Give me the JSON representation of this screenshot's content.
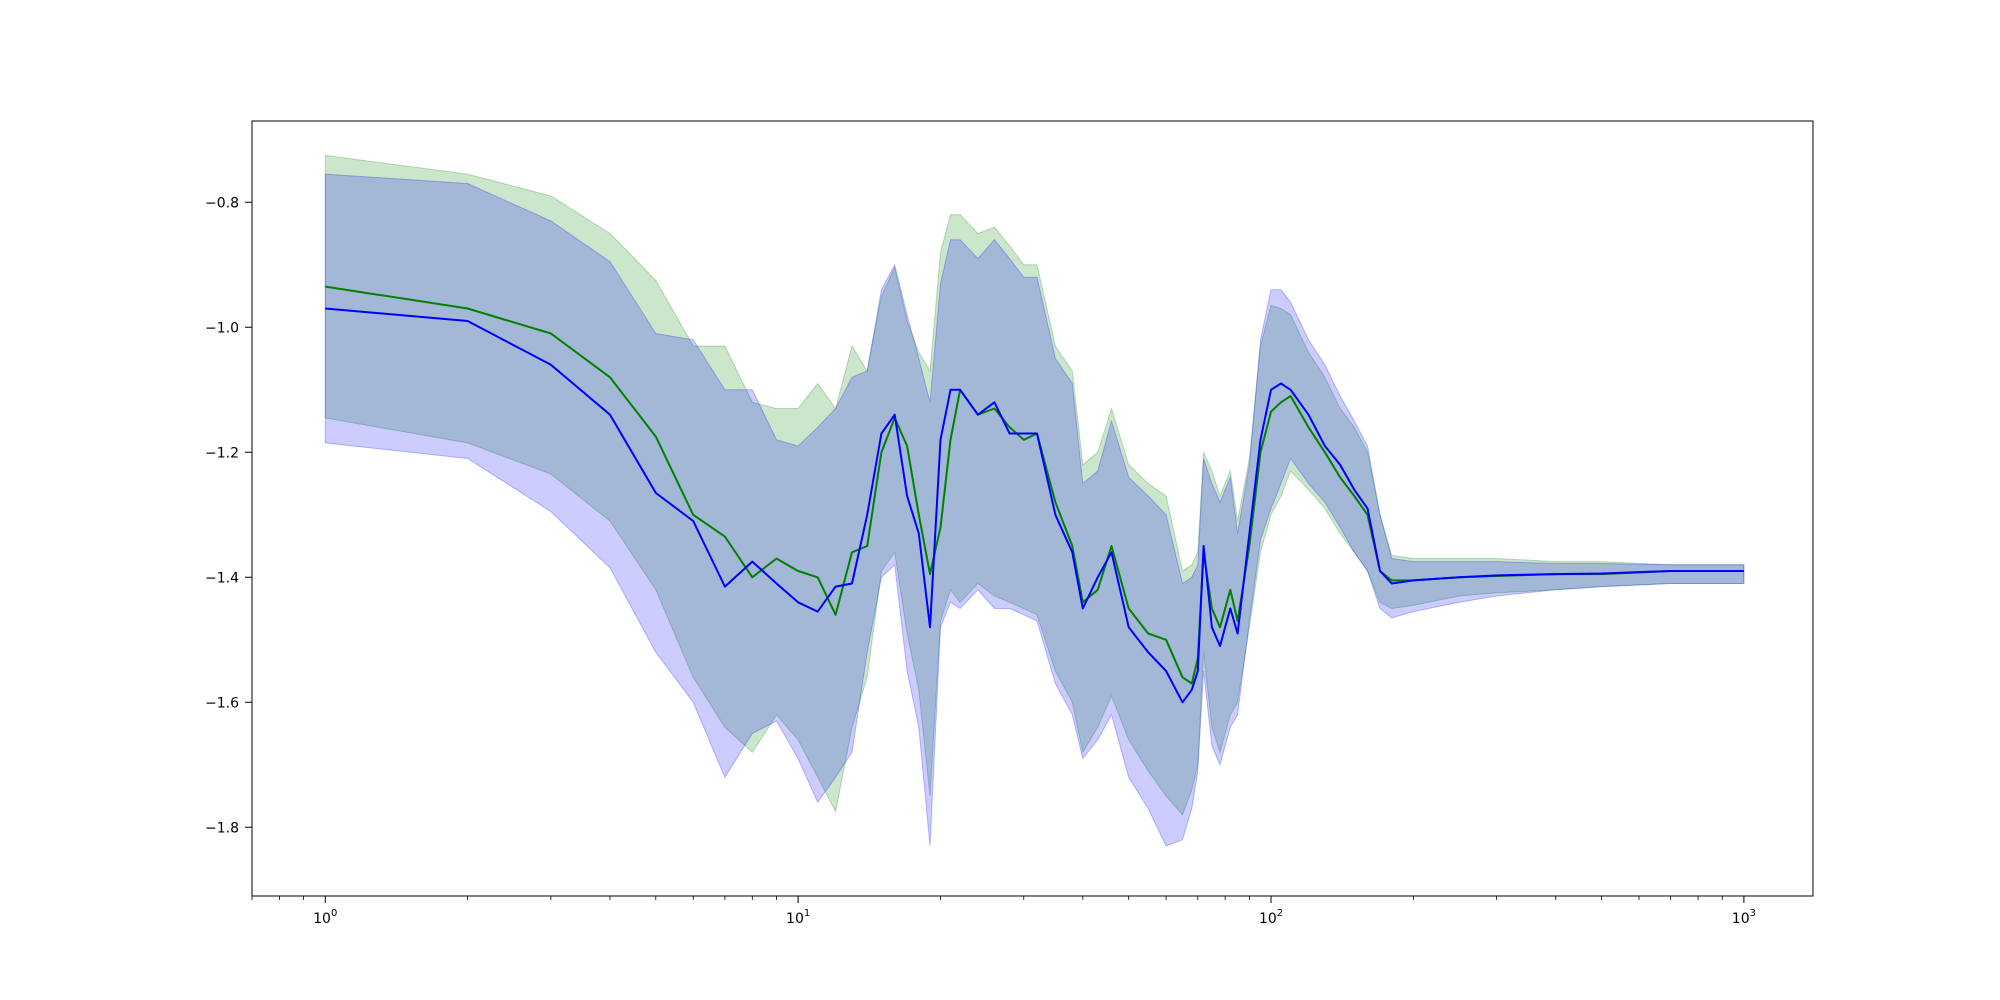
{
  "chart_data": {
    "type": "line",
    "title": "",
    "xlabel": "",
    "ylabel": "",
    "xscale": "log",
    "xlim": [
      0.7,
      1400
    ],
    "ylim": [
      -1.91,
      -0.67
    ],
    "grid": false,
    "x_ticks": [
      {
        "value": 1,
        "base": "10",
        "exp": "0"
      },
      {
        "value": 10,
        "base": "10",
        "exp": "1"
      },
      {
        "value": 100,
        "base": "10",
        "exp": "2"
      },
      {
        "value": 1000,
        "base": "10",
        "exp": "3"
      }
    ],
    "y_ticks": [
      {
        "value": -0.8,
        "label": "−0.8"
      },
      {
        "value": -1.0,
        "label": "−1.0"
      },
      {
        "value": -1.2,
        "label": "−1.2"
      },
      {
        "value": -1.4,
        "label": "−1.4"
      },
      {
        "value": -1.6,
        "label": "−1.6"
      },
      {
        "value": -1.8,
        "label": "−1.8"
      }
    ],
    "series": [
      {
        "color": "#008000",
        "band_color": "#008000",
        "band_opacity": 0.2,
        "x": [
          1,
          2,
          3,
          4,
          5,
          6,
          7,
          8,
          9,
          10,
          11,
          12,
          13,
          14,
          15,
          16,
          17,
          18,
          19,
          20,
          21,
          22,
          24,
          26,
          28,
          30,
          32,
          35,
          38,
          40,
          43,
          46,
          50,
          55,
          60,
          65,
          68,
          70,
          72,
          75,
          78,
          82,
          85,
          90,
          95,
          100,
          105,
          110,
          120,
          130,
          140,
          150,
          160,
          170,
          180,
          200,
          250,
          300,
          400,
          500,
          700,
          1000
        ],
        "y": [
          -0.935,
          -0.97,
          -1.01,
          -1.08,
          -1.175,
          -1.3,
          -1.335,
          -1.4,
          -1.37,
          -1.39,
          -1.4,
          -1.46,
          -1.36,
          -1.35,
          -1.2,
          -1.145,
          -1.19,
          -1.3,
          -1.395,
          -1.32,
          -1.18,
          -1.1,
          -1.14,
          -1.13,
          -1.16,
          -1.18,
          -1.17,
          -1.28,
          -1.35,
          -1.44,
          -1.42,
          -1.35,
          -1.45,
          -1.49,
          -1.5,
          -1.56,
          -1.57,
          -1.53,
          -1.36,
          -1.45,
          -1.48,
          -1.42,
          -1.47,
          -1.35,
          -1.2,
          -1.135,
          -1.12,
          -1.11,
          -1.16,
          -1.2,
          -1.24,
          -1.27,
          -1.3,
          -1.39,
          -1.405,
          -1.405,
          -1.4,
          -1.398,
          -1.395,
          -1.395,
          -1.39,
          -1.39
        ],
        "lower": [
          -1.145,
          -1.185,
          -1.235,
          -1.31,
          -1.42,
          -1.56,
          -1.64,
          -1.68,
          -1.62,
          -1.66,
          -1.72,
          -1.775,
          -1.64,
          -1.56,
          -1.39,
          -1.36,
          -1.49,
          -1.58,
          -1.75,
          -1.47,
          -1.42,
          -1.44,
          -1.41,
          -1.43,
          -1.44,
          -1.45,
          -1.46,
          -1.55,
          -1.6,
          -1.68,
          -1.64,
          -1.59,
          -1.66,
          -1.71,
          -1.75,
          -1.78,
          -1.74,
          -1.7,
          -1.52,
          -1.64,
          -1.68,
          -1.62,
          -1.6,
          -1.48,
          -1.36,
          -1.3,
          -1.27,
          -1.23,
          -1.26,
          -1.29,
          -1.33,
          -1.36,
          -1.39,
          -1.44,
          -1.45,
          -1.445,
          -1.43,
          -1.425,
          -1.42,
          -1.415,
          -1.41,
          -1.41
        ],
        "upper": [
          -0.725,
          -0.755,
          -0.79,
          -0.85,
          -0.925,
          -1.03,
          -1.03,
          -1.12,
          -1.13,
          -1.13,
          -1.09,
          -1.13,
          -1.03,
          -1.07,
          -0.95,
          -0.905,
          -0.99,
          -1.04,
          -1.07,
          -0.88,
          -0.82,
          -0.82,
          -0.85,
          -0.84,
          -0.87,
          -0.9,
          -0.9,
          -1.03,
          -1.07,
          -1.22,
          -1.2,
          -1.13,
          -1.22,
          -1.25,
          -1.27,
          -1.39,
          -1.38,
          -1.36,
          -1.2,
          -1.23,
          -1.27,
          -1.23,
          -1.31,
          -1.21,
          -1.03,
          -0.965,
          -0.97,
          -0.98,
          -1.04,
          -1.08,
          -1.13,
          -1.16,
          -1.2,
          -1.3,
          -1.365,
          -1.37,
          -1.37,
          -1.37,
          -1.375,
          -1.375,
          -1.38,
          -1.38
        ]
      },
      {
        "color": "#0000ff",
        "band_color": "#0000ff",
        "band_opacity": 0.2,
        "x": [
          1,
          2,
          3,
          4,
          5,
          6,
          7,
          8,
          9,
          10,
          11,
          12,
          13,
          14,
          15,
          16,
          17,
          18,
          19,
          20,
          21,
          22,
          24,
          26,
          28,
          30,
          32,
          35,
          38,
          40,
          43,
          46,
          50,
          55,
          60,
          65,
          68,
          70,
          72,
          75,
          78,
          82,
          85,
          90,
          95,
          100,
          105,
          110,
          120,
          130,
          140,
          150,
          160,
          170,
          180,
          200,
          250,
          300,
          400,
          500,
          700,
          1000
        ],
        "y": [
          -0.97,
          -0.99,
          -1.06,
          -1.14,
          -1.265,
          -1.31,
          -1.415,
          -1.375,
          -1.41,
          -1.44,
          -1.455,
          -1.415,
          -1.41,
          -1.3,
          -1.17,
          -1.14,
          -1.27,
          -1.33,
          -1.48,
          -1.18,
          -1.1,
          -1.1,
          -1.14,
          -1.12,
          -1.17,
          -1.17,
          -1.17,
          -1.3,
          -1.36,
          -1.45,
          -1.4,
          -1.36,
          -1.48,
          -1.52,
          -1.55,
          -1.6,
          -1.58,
          -1.55,
          -1.35,
          -1.48,
          -1.51,
          -1.45,
          -1.49,
          -1.33,
          -1.18,
          -1.1,
          -1.09,
          -1.1,
          -1.14,
          -1.19,
          -1.22,
          -1.26,
          -1.29,
          -1.39,
          -1.41,
          -1.405,
          -1.4,
          -1.397,
          -1.395,
          -1.394,
          -1.39,
          -1.39
        ],
        "lower": [
          -1.185,
          -1.21,
          -1.295,
          -1.385,
          -1.52,
          -1.6,
          -1.72,
          -1.65,
          -1.63,
          -1.69,
          -1.76,
          -1.72,
          -1.68,
          -1.52,
          -1.4,
          -1.38,
          -1.55,
          -1.64,
          -1.83,
          -1.48,
          -1.44,
          -1.45,
          -1.42,
          -1.45,
          -1.45,
          -1.46,
          -1.47,
          -1.57,
          -1.62,
          -1.69,
          -1.66,
          -1.62,
          -1.72,
          -1.77,
          -1.83,
          -1.82,
          -1.77,
          -1.71,
          -1.55,
          -1.67,
          -1.7,
          -1.64,
          -1.62,
          -1.47,
          -1.34,
          -1.29,
          -1.25,
          -1.21,
          -1.25,
          -1.28,
          -1.32,
          -1.36,
          -1.39,
          -1.45,
          -1.465,
          -1.455,
          -1.44,
          -1.43,
          -1.42,
          -1.415,
          -1.41,
          -1.41
        ],
        "upper": [
          -0.755,
          -0.77,
          -0.83,
          -0.895,
          -1.01,
          -1.02,
          -1.1,
          -1.1,
          -1.18,
          -1.19,
          -1.16,
          -1.13,
          -1.08,
          -1.07,
          -0.94,
          -0.9,
          -0.98,
          -1.05,
          -1.12,
          -0.93,
          -0.86,
          -0.86,
          -0.89,
          -0.86,
          -0.89,
          -0.92,
          -0.92,
          -1.05,
          -1.09,
          -1.25,
          -1.23,
          -1.15,
          -1.24,
          -1.27,
          -1.3,
          -1.41,
          -1.4,
          -1.38,
          -1.21,
          -1.25,
          -1.28,
          -1.24,
          -1.33,
          -1.22,
          -1.02,
          -0.94,
          -0.94,
          -0.96,
          -1.02,
          -1.06,
          -1.11,
          -1.15,
          -1.19,
          -1.3,
          -1.37,
          -1.375,
          -1.375,
          -1.375,
          -1.378,
          -1.378,
          -1.38,
          -1.38
        ]
      }
    ]
  }
}
